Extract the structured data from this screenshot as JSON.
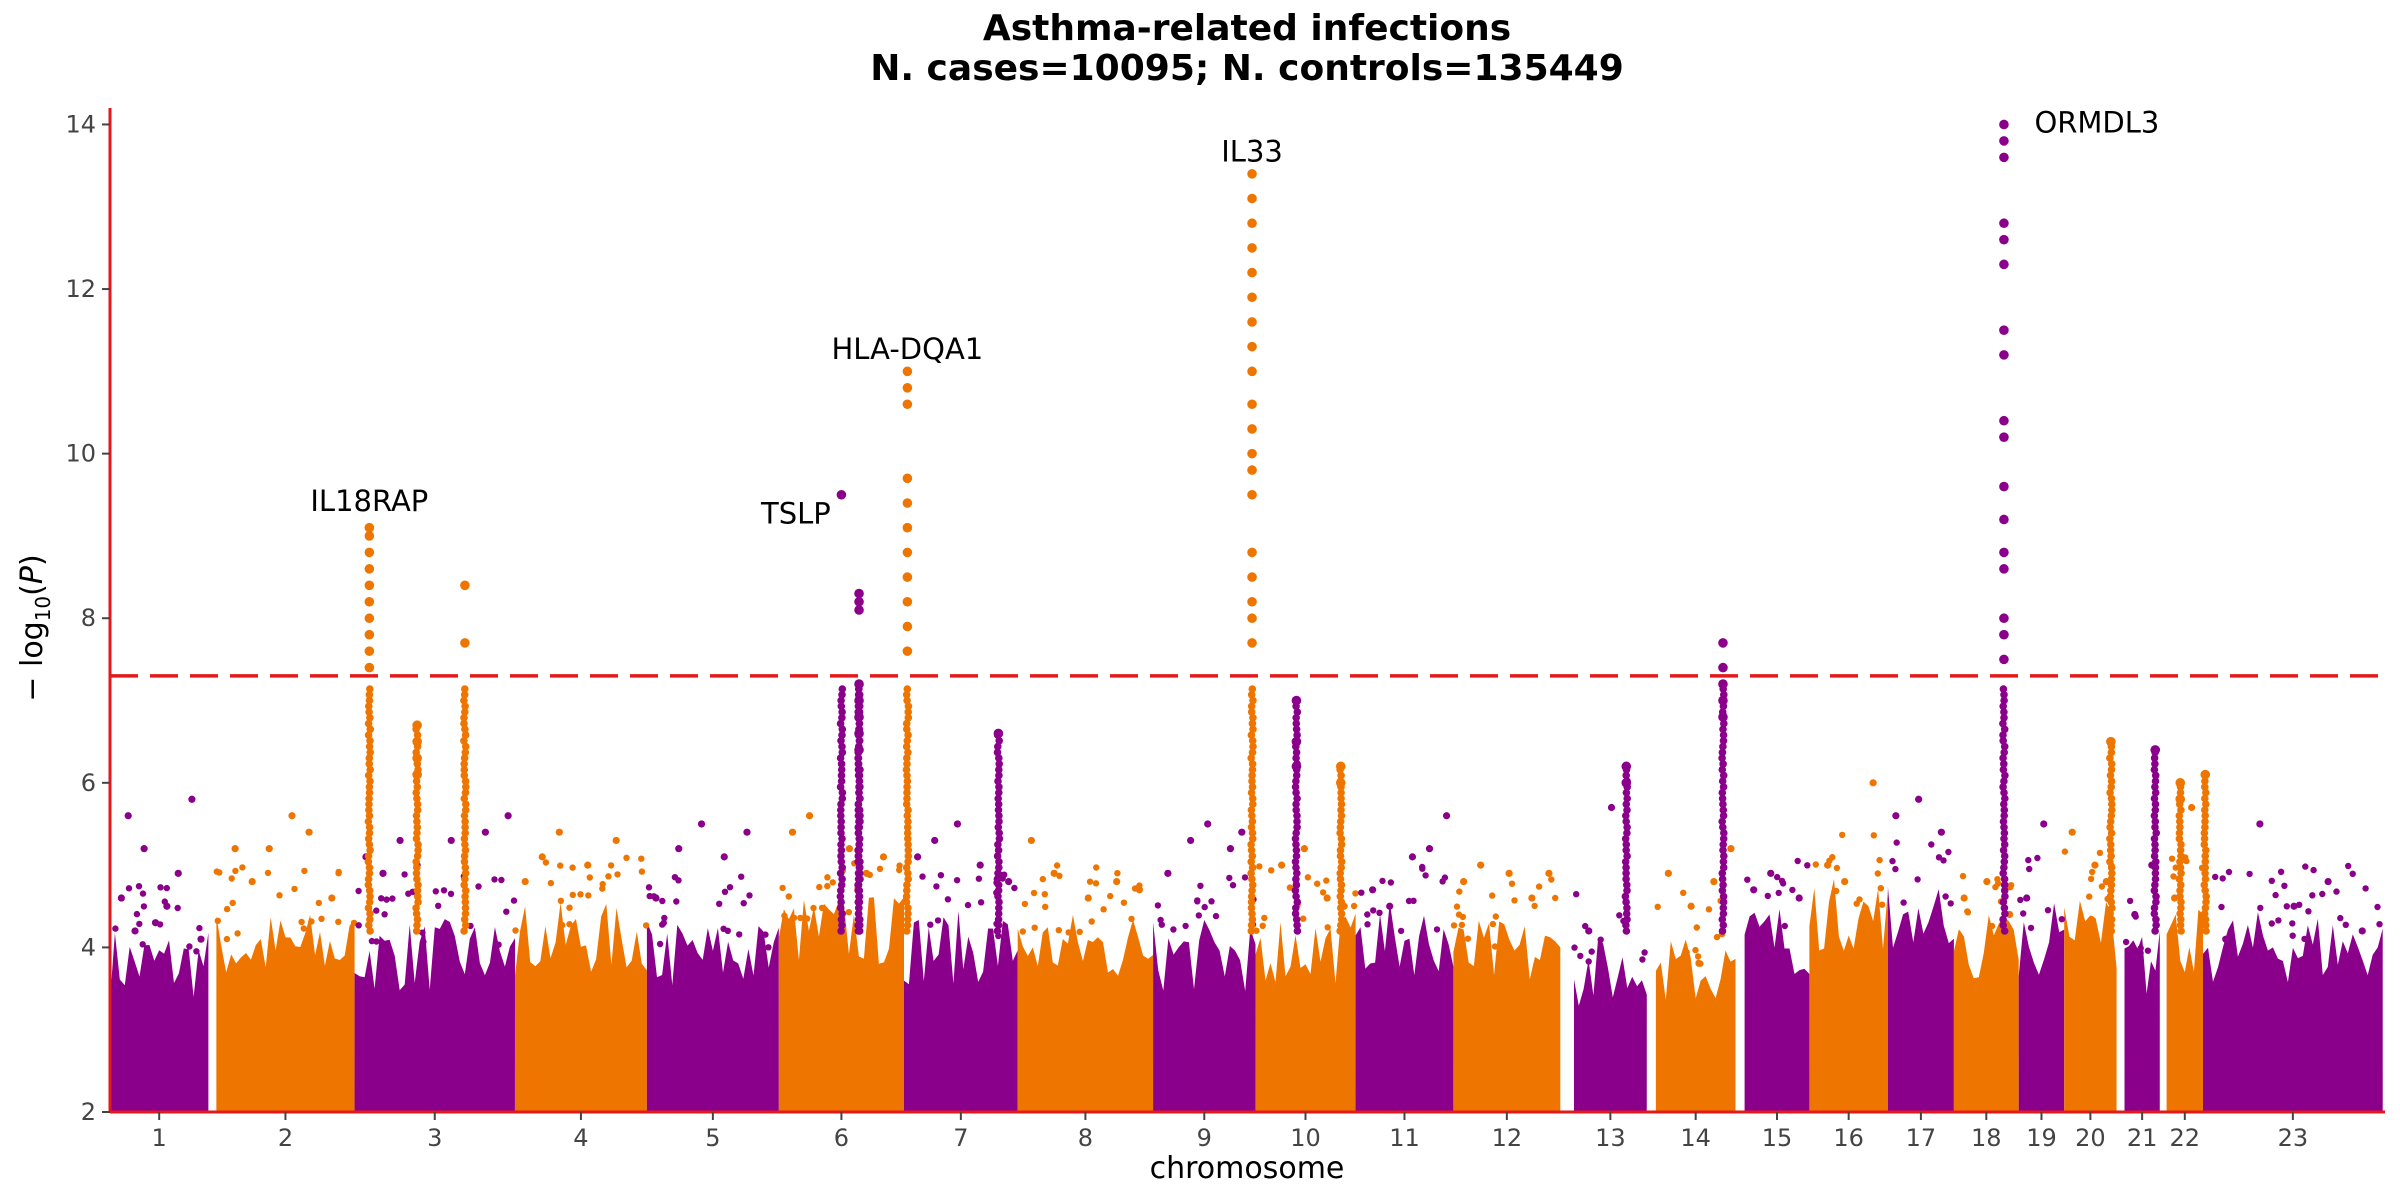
{
  "chart_data": {
    "type": "scatter",
    "subtype": "manhattan",
    "title": "Asthma-related infections",
    "subtitle": "N. cases=10095; N. controls=135449",
    "xlabel": "chromosome",
    "ylabel": "−log10(P)",
    "ylim": [
      2,
      14.2
    ],
    "yticks": [
      2,
      4,
      6,
      8,
      10,
      12,
      14
    ],
    "grid": false,
    "colors": {
      "odd": "#8B008B",
      "even": "#EE7600",
      "threshold": "#E31A1C",
      "axis": "#E31A1C"
    },
    "threshold": 7.3,
    "chromosome_ticks": [
      "1",
      "2",
      "3",
      "4",
      "5",
      "6",
      "7",
      "8",
      "9",
      "10",
      "11",
      "12",
      "13",
      "14",
      "15",
      "16",
      "17",
      "18",
      "19",
      "20",
      "21",
      "22",
      "23"
    ],
    "chromosomes": [
      {
        "chr": 1,
        "start": 0,
        "end": 0.0865,
        "band_top": 3.6,
        "scattered": [
          [
            0.01,
            4.6
          ],
          [
            0.016,
            5.6
          ],
          [
            0.022,
            4.2
          ],
          [
            0.03,
            5.2
          ],
          [
            0.04,
            4.3
          ],
          [
            0.05,
            4.5
          ],
          [
            0.06,
            4.9
          ],
          [
            0.072,
            5.8
          ],
          [
            0.08,
            4.1
          ]
        ]
      },
      {
        "chr": 2,
        "start": 0.0935,
        "end": 0.215,
        "band_top": 3.8,
        "scattered": [
          [
            0.11,
            5.2
          ],
          [
            0.125,
            4.8
          ],
          [
            0.14,
            5.2
          ],
          [
            0.16,
            5.6
          ],
          [
            0.175,
            5.4
          ],
          [
            0.195,
            4.6
          ]
        ]
      },
      {
        "chr": 3,
        "start": 0.215,
        "end": 0.356,
        "band_top": 3.7,
        "scattered": [
          [
            0.225,
            5.1
          ],
          [
            0.24,
            4.9
          ],
          [
            0.255,
            5.3
          ],
          [
            0.27,
            5.0
          ],
          [
            0.3,
            5.3
          ],
          [
            0.33,
            5.4
          ],
          [
            0.35,
            5.6
          ]
        ]
      },
      {
        "chr": 4,
        "start": 0.356,
        "end": 0.472,
        "band_top": 3.9,
        "scattered": [
          [
            0.365,
            4.8
          ],
          [
            0.38,
            5.1
          ],
          [
            0.395,
            5.4
          ],
          [
            0.42,
            5.0
          ],
          [
            0.445,
            5.3
          ]
        ]
      },
      {
        "chr": 5,
        "start": 0.472,
        "end": 0.588,
        "band_top": 3.7,
        "scattered": [
          [
            0.48,
            4.6
          ],
          [
            0.5,
            5.2
          ],
          [
            0.52,
            5.5
          ],
          [
            0.54,
            5.1
          ],
          [
            0.56,
            5.4
          ]
        ]
      },
      {
        "chr": 6,
        "start": 0.588,
        "end": 0.698,
        "band_top": 4.0,
        "scattered": [
          [
            0.6,
            5.4
          ],
          [
            0.615,
            5.6
          ],
          [
            0.65,
            5.2
          ],
          [
            0.665,
            4.9
          ],
          [
            0.68,
            5.1
          ]
        ]
      },
      {
        "chr": 7,
        "start": 0.698,
        "end": 0.798,
        "band_top": 3.8,
        "scattered": [
          [
            0.71,
            5.1
          ],
          [
            0.725,
            5.3
          ],
          [
            0.745,
            5.5
          ],
          [
            0.765,
            5.0
          ],
          [
            0.79,
            4.8
          ]
        ]
      },
      {
        "chr": 8,
        "start": 0.798,
        "end": 0.917,
        "band_top": 3.8,
        "scattered": [
          [
            0.81,
            5.3
          ],
          [
            0.83,
            4.9
          ],
          [
            0.86,
            4.6
          ],
          [
            0.885,
            4.8
          ],
          [
            0.905,
            4.7
          ]
        ]
      },
      {
        "chr": 9,
        "start": 0.917,
        "end": 1.007,
        "band_top": 3.7,
        "scattered": [
          [
            0.93,
            4.9
          ],
          [
            0.95,
            5.3
          ],
          [
            0.965,
            5.5
          ],
          [
            0.985,
            5.2
          ],
          [
            0.995,
            5.4
          ]
        ]
      },
      {
        "chr": 10,
        "start": 1.007,
        "end": 1.095,
        "band_top": 3.8,
        "scattered": [
          [
            1.03,
            5.0
          ],
          [
            1.05,
            5.2
          ],
          [
            1.07,
            4.6
          ],
          [
            1.085,
            4.5
          ]
        ]
      },
      {
        "chr": 11,
        "start": 1.095,
        "end": 1.181,
        "band_top": 3.9,
        "scattered": [
          [
            1.11,
            4.7
          ],
          [
            1.125,
            4.5
          ],
          [
            1.145,
            5.1
          ],
          [
            1.16,
            5.2
          ],
          [
            1.175,
            5.6
          ]
        ]
      },
      {
        "chr": 12,
        "start": 1.181,
        "end": 1.275,
        "band_top": 3.7,
        "scattered": [
          [
            1.19,
            4.8
          ],
          [
            1.205,
            5.0
          ],
          [
            1.23,
            4.9
          ],
          [
            1.25,
            4.6
          ],
          [
            1.265,
            4.9
          ]
        ]
      },
      {
        "chr": 13,
        "start": 1.287,
        "end": 1.351,
        "band_top": 3.5,
        "scattered": [
          [
            1.3,
            4.2
          ],
          [
            1.32,
            5.7
          ]
        ]
      },
      {
        "chr": 14,
        "start": 1.359,
        "end": 1.429,
        "band_top": 3.5,
        "scattered": [
          [
            1.37,
            4.9
          ],
          [
            1.39,
            4.5
          ],
          [
            1.41,
            4.8
          ],
          [
            1.425,
            5.2
          ]
        ]
      },
      {
        "chr": 15,
        "start": 1.437,
        "end": 1.494,
        "band_top": 3.9,
        "scattered": [
          [
            1.445,
            4.7
          ],
          [
            1.46,
            4.9
          ],
          [
            1.485,
            4.6
          ]
        ]
      },
      {
        "chr": 16,
        "start": 1.494,
        "end": 1.563,
        "band_top": 4.2,
        "scattered": [
          [
            1.51,
            5.0
          ],
          [
            1.525,
            4.8
          ],
          [
            1.55,
            6.0
          ]
        ]
      },
      {
        "chr": 17,
        "start": 1.563,
        "end": 1.621,
        "band_top": 4.2,
        "scattered": [
          [
            1.57,
            5.6
          ],
          [
            1.59,
            5.8
          ],
          [
            1.61,
            5.4
          ]
        ]
      },
      {
        "chr": 18,
        "start": 1.621,
        "end": 1.678,
        "band_top": 3.8,
        "scattered": [
          [
            1.63,
            4.6
          ],
          [
            1.65,
            4.8
          ],
          [
            1.67,
            4.4
          ]
        ]
      },
      {
        "chr": 19,
        "start": 1.678,
        "end": 1.718,
        "band_top": 3.9,
        "scattered": [
          [
            1.685,
            4.6
          ],
          [
            1.7,
            5.5
          ]
        ]
      },
      {
        "chr": 20,
        "start": 1.718,
        "end": 1.764,
        "band_top": 4.0,
        "scattered": [
          [
            1.725,
            5.4
          ],
          [
            1.745,
            5.0
          ],
          [
            1.755,
            4.8
          ]
        ]
      },
      {
        "chr": 21,
        "start": 1.771,
        "end": 1.802,
        "band_top": 3.6,
        "scattered": [
          [
            1.78,
            4.4
          ],
          [
            1.795,
            5.0
          ]
        ]
      },
      {
        "chr": 22,
        "start": 1.808,
        "end": 1.84,
        "band_top": 3.9,
        "scattered": [
          [
            1.815,
            4.6
          ],
          [
            1.83,
            5.7
          ]
        ]
      },
      {
        "chr": 23,
        "start": 1.84,
        "end": 1.998,
        "band_top": 3.8,
        "scattered": [
          [
            1.86,
            4.1
          ],
          [
            1.89,
            5.5
          ],
          [
            1.92,
            4.5
          ],
          [
            1.95,
            4.8
          ],
          [
            1.98,
            4.2
          ]
        ]
      }
    ],
    "peaks": [
      {
        "chr": 2,
        "pos": 0.228,
        "values": [
          7.4,
          7.6,
          7.8,
          8.0,
          8.2,
          8.4,
          8.6,
          8.8,
          9.0,
          9.1
        ]
      },
      {
        "chr": 2,
        "pos": 0.312,
        "values": [
          7.7,
          8.4
        ]
      },
      {
        "chr": 2,
        "pos": 0.27,
        "values": [
          6.1,
          6.3,
          6.5,
          6.7
        ]
      },
      {
        "chr": 5,
        "pos": 0.643,
        "values": [
          9.5
        ]
      },
      {
        "chr": 5,
        "pos": 0.6585,
        "values": [
          8.1,
          8.2,
          8.3
        ]
      },
      {
        "chr": 5,
        "pos": 0.6585,
        "values": [
          6.4,
          6.6,
          6.8,
          7.0,
          7.2
        ]
      },
      {
        "chr": 6,
        "pos": 0.701,
        "values": [
          7.6,
          7.9,
          8.2,
          8.5,
          8.8,
          9.1,
          9.4,
          9.7,
          10.6,
          10.8,
          11.0
        ]
      },
      {
        "chr": 8,
        "pos": 1.004,
        "values": [
          7.7,
          8.0,
          8.2,
          8.5,
          8.8,
          9.5,
          9.8,
          10.0,
          10.3,
          10.6,
          11.0,
          11.3,
          11.6,
          11.9,
          12.2,
          12.5,
          12.8,
          13.1,
          13.4
        ]
      },
      {
        "chr": 9,
        "pos": 1.043,
        "values": [
          6.2,
          6.5,
          7.0
        ]
      },
      {
        "chr": 10,
        "pos": 1.082,
        "values": [
          6.0,
          6.2
        ]
      },
      {
        "chr": 15,
        "pos": 1.418,
        "values": [
          6.8,
          7.0,
          7.2,
          7.4,
          7.7
        ]
      },
      {
        "chr": 17,
        "pos": 1.665,
        "values": [
          7.5,
          7.8,
          8.0,
          8.6,
          8.8,
          9.2,
          9.6,
          10.2,
          10.4,
          11.2,
          11.5,
          12.3,
          12.6,
          12.8,
          13.6,
          13.8,
          14.0
        ]
      },
      {
        "chr": 20,
        "pos": 1.759,
        "values": [
          6.5
        ]
      },
      {
        "chr": 21,
        "pos": 1.798,
        "values": [
          6.4
        ]
      },
      {
        "chr": 22,
        "pos": 1.82,
        "values": [
          5.8,
          6.0
        ]
      },
      {
        "chr": 22,
        "pos": 1.842,
        "values": [
          6.1
        ]
      },
      {
        "chr": 13,
        "pos": 1.333,
        "values": [
          6.0,
          6.2
        ]
      },
      {
        "chr": 7,
        "pos": 0.781,
        "values": [
          6.6
        ]
      }
    ],
    "annotations": [
      {
        "label": "IL18RAP",
        "pos": 0.228,
        "y": 9.3,
        "anchor": "middle"
      },
      {
        "label": "TSLP",
        "pos": 0.603,
        "y": 9.15,
        "anchor": "middle"
      },
      {
        "label": "HLA-DQA1",
        "pos": 0.701,
        "y": 11.15,
        "anchor": "middle"
      },
      {
        "label": "IL33",
        "pos": 1.004,
        "y": 13.55,
        "anchor": "middle"
      },
      {
        "label": "ORMDL3",
        "pos": 1.676,
        "y": 13.9,
        "anchor": "start"
      }
    ]
  }
}
